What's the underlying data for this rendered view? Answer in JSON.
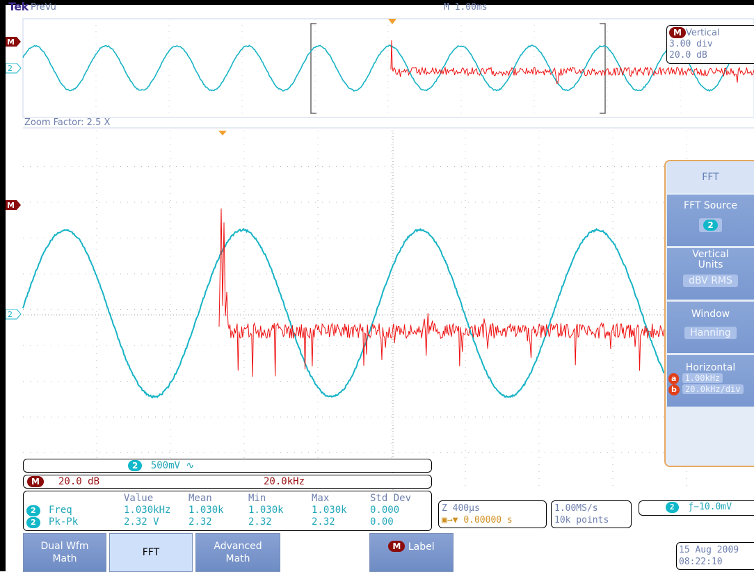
{
  "header": {
    "brand": "Tek",
    "mode": "PreVu",
    "timebase": "M 1.00ms"
  },
  "overview": {
    "math_marker": "M",
    "ch2_marker": "2",
    "zoom_factor": "Zoom Factor: 2.5 X",
    "vertical_badge": "M",
    "vertical_title": "Vertical",
    "vertical_div": "3.00 div",
    "vertical_db": "20.0 dB"
  },
  "main": {
    "math_marker": "M",
    "ch2_marker": "2"
  },
  "readouts": {
    "ch2_badge": "2",
    "ch2_scale": "500mV ∿",
    "math_badge": "M",
    "math_scale": "20.0 dB",
    "math_freq": "20.0kHz"
  },
  "measurements": {
    "headers": [
      "Value",
      "Mean",
      "Min",
      "Max",
      "Std Dev"
    ],
    "rows": [
      {
        "badge": "2",
        "name": "Freq",
        "value": "1.030kHz",
        "mean": "1.030k",
        "min": "1.030k",
        "max": "1.030k",
        "std": "0.000"
      },
      {
        "badge": "2",
        "name": "Pk-Pk",
        "value": "2.32 V",
        "mean": "2.32",
        "min": "2.32",
        "max": "2.32",
        "std": "0.00"
      }
    ]
  },
  "status": {
    "zoom_time": "Z 400µs",
    "trigger_pos": "0.00000 s",
    "sample_rate": "1.00MS/s",
    "record_length": "10k points",
    "trig_badge": "2",
    "trig_level": "ƒ−10.0mV",
    "date": "15 Aug 2009",
    "time": "08:22:10"
  },
  "softkeys": [
    {
      "line1": "Dual Wfm",
      "line2": "Math"
    },
    {
      "line1": "FFT",
      "line2": ""
    },
    {
      "line1": "Advanced",
      "line2": "Math"
    },
    {
      "badge": "M",
      "line1": "Label",
      "line2": ""
    }
  ],
  "side_menu": {
    "title": "FFT",
    "source_label": "FFT Source",
    "source_value": "2",
    "units_label_1": "Vertical",
    "units_label_2": "Units",
    "units_value": "dBV RMS",
    "window_label": "Window",
    "window_value": "Hanning",
    "horizontal_label": "Horizontal",
    "h_a_badge": "a",
    "h_a_value": "1.00kHz",
    "h_b_badge": "b",
    "h_b_value": "20.0kHz/div"
  },
  "colors": {
    "ch2": "#17b3c5",
    "math": "#ee1111",
    "frame": "#e8a860"
  }
}
